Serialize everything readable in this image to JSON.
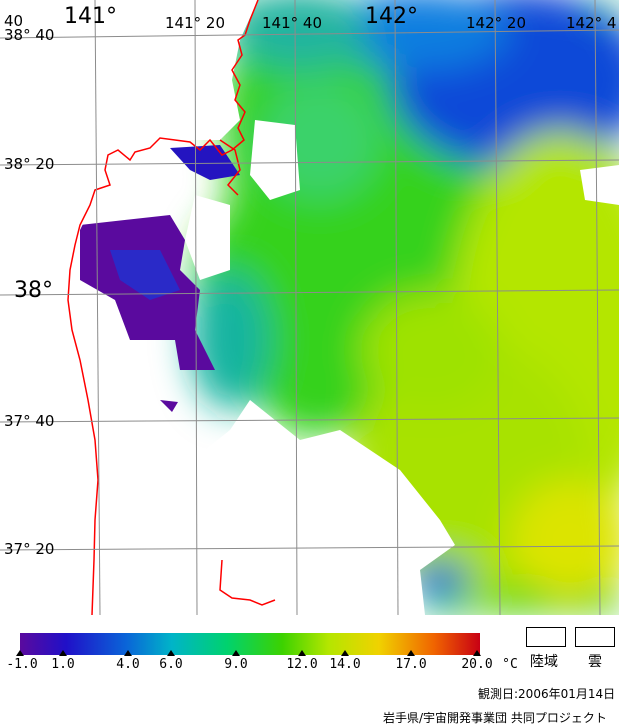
{
  "map": {
    "lat_labels": [
      "38° 40",
      "38° 20",
      "38°",
      "37° 40",
      "37° 20"
    ],
    "lon_labels": [
      "141°",
      "141° 20",
      "141° 40",
      "142°",
      "142° 20",
      "142° 4"
    ],
    "corner_label": "40"
  },
  "legend": {
    "ticks": [
      "-1.0",
      "1.0",
      "4.0",
      "6.0",
      "9.0",
      "12.0",
      "14.0",
      "17.0",
      "20.0"
    ],
    "unit": "°C",
    "land_label": "陸域",
    "cloud_label": "雲",
    "colors": [
      "#5a0a9e",
      "#2010c8",
      "#0a64d8",
      "#00b4c8",
      "#00d26e",
      "#3cd200",
      "#b4e600",
      "#f0d200",
      "#f06400",
      "#c80014"
    ]
  },
  "info": {
    "observation_date": "観測日:2006年01月14日",
    "credit": "岩手県/宇宙開発事業団 共同プロジェクト"
  }
}
